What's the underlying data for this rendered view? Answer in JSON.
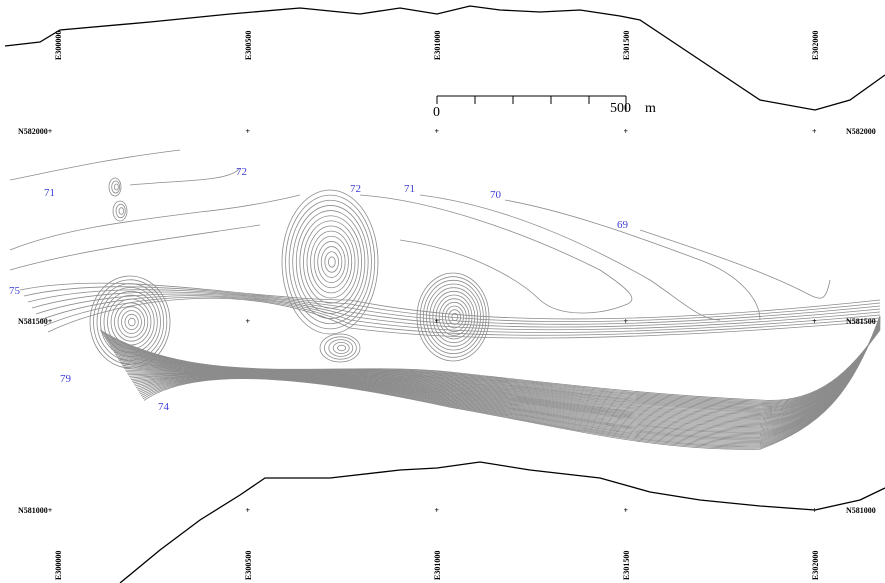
{
  "eastings": [
    "E300000",
    "E300500",
    "E301000",
    "E301500",
    "E302000"
  ],
  "northings_left": [
    "N582000+",
    "N581500+",
    "N581000+"
  ],
  "northings_right": [
    "N582000",
    "N581500",
    "N581000"
  ],
  "contour_labels": [
    "71",
    "72",
    "72",
    "71",
    "70",
    "69",
    "75",
    "79",
    "74"
  ],
  "scale": {
    "start": "0",
    "end": "500",
    "unit": "m"
  }
}
